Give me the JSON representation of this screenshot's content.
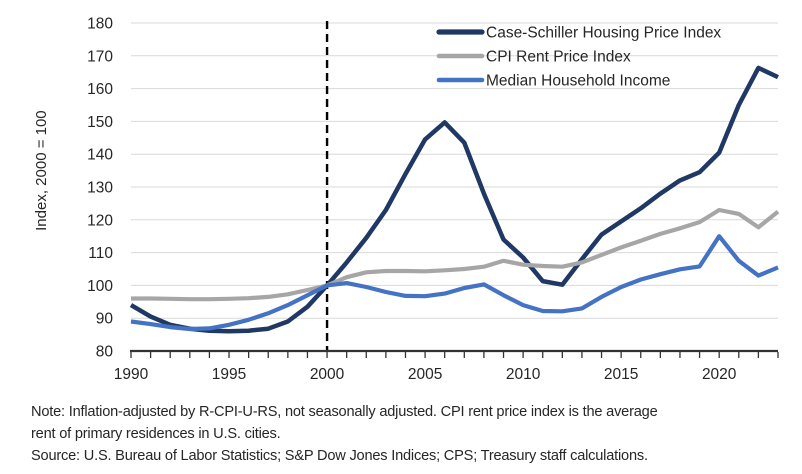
{
  "chart_data": {
    "type": "line",
    "title": "",
    "ylabel": "Index, 2000 = 100",
    "ylim": [
      80,
      180
    ],
    "ytick_step": 10,
    "grid": true,
    "legend_position": "top-right-inside",
    "reference_line_x": 2000,
    "years": [
      1990,
      1991,
      1992,
      1993,
      1994,
      1995,
      1996,
      1997,
      1998,
      1999,
      2000,
      2001,
      2002,
      2003,
      2004,
      2005,
      2006,
      2007,
      2008,
      2009,
      2010,
      2011,
      2012,
      2013,
      2014,
      2015,
      2016,
      2017,
      2018,
      2019,
      2020,
      2021,
      2022,
      2023
    ],
    "xticks_labeled": [
      1990,
      1995,
      2000,
      2005,
      2010,
      2015,
      2020
    ],
    "series": [
      {
        "name": "Case-Schiller Housing Price Index",
        "color": "#1f3864",
        "line_width": 4.5,
        "values": [
          94,
          90.5,
          88,
          86.8,
          86.2,
          86,
          86.2,
          86.8,
          89,
          93.5,
          100,
          107,
          114.5,
          123,
          134,
          144.5,
          149.7,
          143.5,
          128,
          114,
          108.5,
          101.3,
          100.2,
          108,
          115.5,
          119.5,
          123.5,
          128,
          132,
          134.5,
          140.5,
          155,
          166.3,
          163.5
        ]
      },
      {
        "name": "CPI Rent Price Index",
        "color": "#a6a6a6",
        "line_width": 4.2,
        "values": [
          96,
          96,
          95.9,
          95.8,
          95.8,
          95.9,
          96.1,
          96.5,
          97.3,
          98.6,
          100,
          102.5,
          104,
          104.4,
          104.4,
          104.3,
          104.6,
          105,
          105.7,
          107.5,
          106.3,
          105.9,
          105.7,
          107,
          109.3,
          111.6,
          113.6,
          115.7,
          117.4,
          119.3,
          123,
          121.8,
          117.7,
          122.5
        ]
      },
      {
        "name": "Median Household Income",
        "color": "#4472c4",
        "line_width": 4.2,
        "values": [
          89,
          88.2,
          87.3,
          86.7,
          86.9,
          88,
          89.5,
          91.5,
          94,
          97,
          100,
          100.7,
          99.5,
          98,
          96.8,
          96.7,
          97.5,
          99.2,
          100.3,
          97,
          94,
          92.2,
          92.1,
          93,
          96.5,
          99.5,
          101.8,
          103.4,
          104.9,
          105.8,
          115,
          107.5,
          103,
          105.5
        ]
      }
    ],
    "colors": {
      "grid": "#d9d9d9",
      "axis": "#333333",
      "text": "#262626",
      "reference_line": "#000000"
    }
  },
  "notes": {
    "lines": [
      "Note: Inflation-adjusted by R-CPI-U-RS, not seasonally adjusted. CPI rent price index is the average",
      "rent of primary residences in U.S. cities.",
      "Source: U.S. Bureau of Labor Statistics; S&P Dow Jones Indices; CPS; Treasury staff calculations."
    ]
  }
}
